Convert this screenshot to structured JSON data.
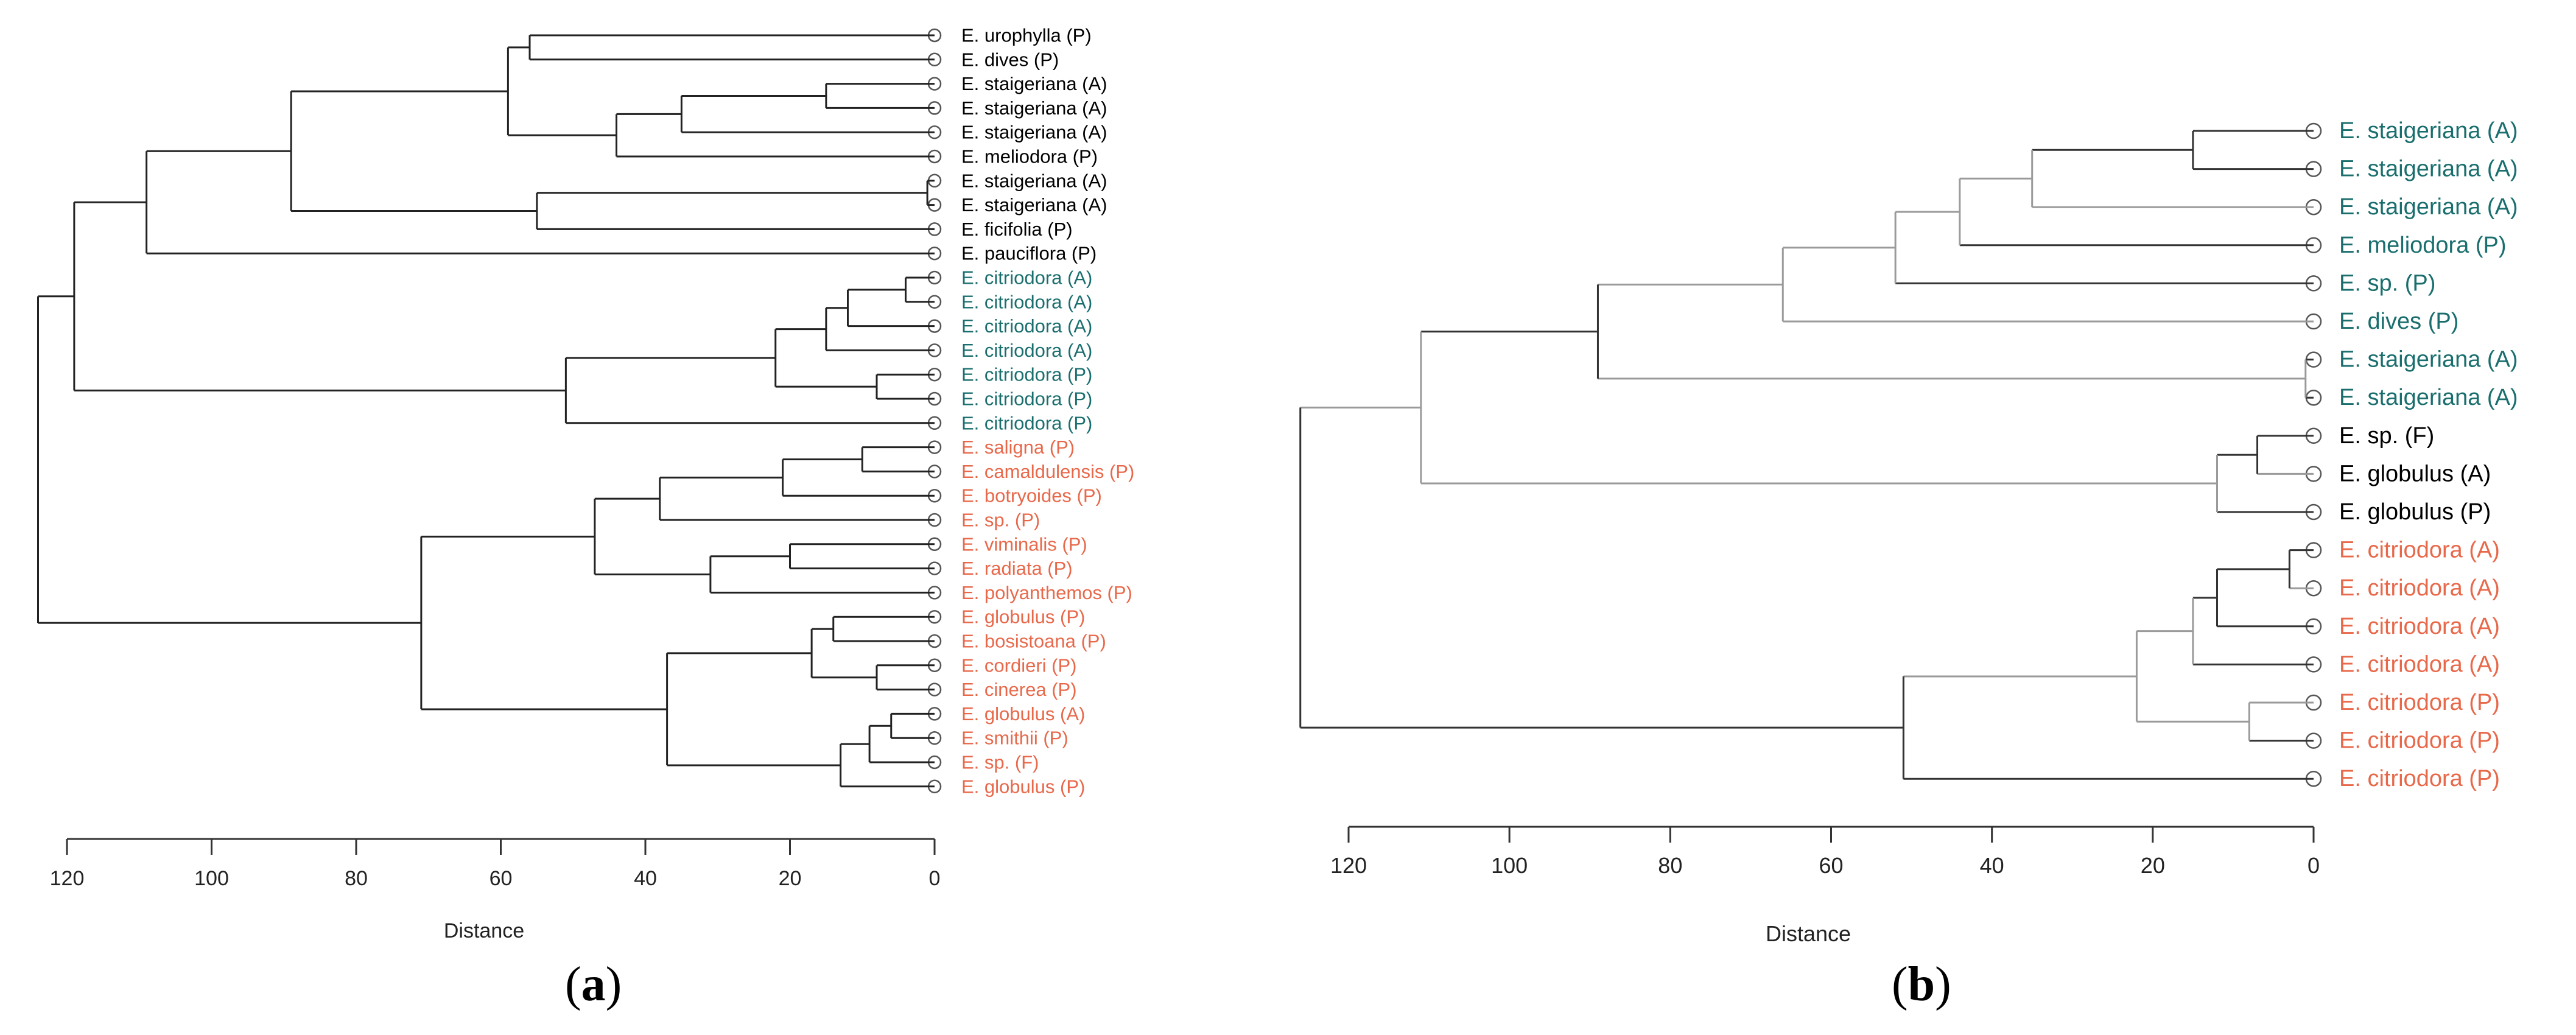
{
  "panels": [
    {
      "id": "a",
      "caption_open": "(",
      "caption_letter": "a",
      "caption_close": ")",
      "axis": {
        "label": "Distance",
        "ticks": [
          120,
          100,
          80,
          60,
          40,
          20,
          0
        ],
        "max": 124
      },
      "colors": {
        "black": "#000000",
        "teal": "#1a6e6e",
        "orange": "#e8684a"
      },
      "edge_style": "uniform",
      "tree": {
        "h": 124,
        "c": [
          {
            "h": 119,
            "c": [
              {
                "h": 109,
                "c": [
                  {
                    "h": 89,
                    "c": [
                      {
                        "h": 59,
                        "c": [
                          {
                            "h": 56,
                            "c": [
                              {
                                "label": "E. urophylla (P)",
                                "color": "black"
                              },
                              {
                                "label": "E. dives (P)",
                                "color": "black"
                              }
                            ]
                          },
                          {
                            "h": 44,
                            "c": [
                              {
                                "h": 35,
                                "c": [
                                  {
                                    "h": 15,
                                    "c": [
                                      {
                                        "label": "E. staigeriana (A)",
                                        "color": "black"
                                      },
                                      {
                                        "label": "E. staigeriana (A)",
                                        "color": "black"
                                      }
                                    ]
                                  },
                                  {
                                    "label": "E. staigeriana (A)",
                                    "color": "black"
                                  }
                                ]
                              },
                              {
                                "label": "E. meliodora (P)",
                                "color": "black"
                              }
                            ]
                          }
                        ]
                      },
                      {
                        "h": 55,
                        "c": [
                          {
                            "h": 1,
                            "c": [
                              {
                                "label": "E. staigeriana (A)",
                                "color": "black"
                              },
                              {
                                "label": "E. staigeriana (A)",
                                "color": "black"
                              }
                            ]
                          },
                          {
                            "label": "E. ficifolia (P)",
                            "color": "black"
                          }
                        ]
                      }
                    ]
                  },
                  {
                    "label": "E. pauciflora (P)",
                    "color": "black"
                  }
                ]
              },
              {
                "h": 51,
                "c": [
                  {
                    "h": 22,
                    "c": [
                      {
                        "h": 15,
                        "c": [
                          {
                            "h": 12,
                            "c": [
                              {
                                "h": 4,
                                "c": [
                                  {
                                    "label": "E. citriodora (A)",
                                    "color": "teal"
                                  },
                                  {
                                    "label": "E. citriodora (A)",
                                    "color": "teal"
                                  }
                                ]
                              },
                              {
                                "label": "E. citriodora (A)",
                                "color": "teal"
                              }
                            ]
                          },
                          {
                            "label": "E. citriodora (A)",
                            "color": "teal"
                          }
                        ]
                      },
                      {
                        "h": 8,
                        "c": [
                          {
                            "label": "E. citriodora (P)",
                            "color": "teal"
                          },
                          {
                            "label": "E. citriodora (P)",
                            "color": "teal"
                          }
                        ]
                      }
                    ]
                  },
                  {
                    "label": "E. citriodora (P)",
                    "color": "teal"
                  }
                ]
              }
            ]
          },
          {
            "h": 71,
            "c": [
              {
                "h": 47,
                "c": [
                  {
                    "h": 38,
                    "c": [
                      {
                        "h": 21,
                        "c": [
                          {
                            "h": 10,
                            "c": [
                              {
                                "label": "E. saligna (P)",
                                "color": "orange"
                              },
                              {
                                "label": "E. camaldulensis (P)",
                                "color": "orange"
                              }
                            ]
                          },
                          {
                            "label": "E. botryoides (P)",
                            "color": "orange"
                          }
                        ]
                      },
                      {
                        "label": "E. sp. (P)",
                        "color": "orange"
                      }
                    ]
                  },
                  {
                    "h": 31,
                    "c": [
                      {
                        "h": 20,
                        "c": [
                          {
                            "label": "E. viminalis (P)",
                            "color": "orange"
                          },
                          {
                            "label": "E. radiata (P)",
                            "color": "orange"
                          }
                        ]
                      },
                      {
                        "label": "E. polyanthemos (P)",
                        "color": "orange"
                      }
                    ]
                  }
                ]
              },
              {
                "h": 37,
                "c": [
                  {
                    "h": 17,
                    "c": [
                      {
                        "h": 14,
                        "c": [
                          {
                            "label": "E. globulus (P)",
                            "color": "orange"
                          },
                          {
                            "label": "E. bosistoana (P)",
                            "color": "orange"
                          }
                        ]
                      },
                      {
                        "h": 8,
                        "c": [
                          {
                            "label": "E. cordieri (P)",
                            "color": "orange"
                          },
                          {
                            "label": "E. cinerea (P)",
                            "color": "orange"
                          }
                        ]
                      }
                    ]
                  },
                  {
                    "h": 13,
                    "c": [
                      {
                        "h": 9,
                        "c": [
                          {
                            "h": 6,
                            "c": [
                              {
                                "label": "E. globulus (A)",
                                "color": "orange"
                              },
                              {
                                "label": "E. smithii (P)",
                                "color": "orange"
                              }
                            ]
                          },
                          {
                            "label": "E. sp. (F)",
                            "color": "orange"
                          }
                        ]
                      },
                      {
                        "label": "E. globulus (P)",
                        "color": "orange"
                      }
                    ]
                  }
                ]
              }
            ]
          }
        ]
      }
    },
    {
      "id": "b",
      "caption_open": "(",
      "caption_letter": "b",
      "caption_close": ")",
      "axis": {
        "label": "Distance",
        "ticks": [
          120,
          100,
          80,
          60,
          40,
          20,
          0
        ],
        "max": 126
      },
      "colors": {
        "black": "#000000",
        "teal": "#1a6e6e",
        "orange": "#e8684a",
        "edge_dark": "#333333",
        "edge_light": "#9a9a9a"
      },
      "edge_style": "mixed",
      "tree": {
        "h": 126,
        "c": [
          {
            "h": 111,
            "e": "light",
            "c": [
              {
                "h": 89,
                "e": "dark",
                "c": [
                  {
                    "h": 66,
                    "e": "light",
                    "c": [
                      {
                        "h": 52,
                        "e": "light",
                        "c": [
                          {
                            "h": 44,
                            "e": "light",
                            "c": [
                              {
                                "h": 35,
                                "e": "light",
                                "c": [
                                  {
                                    "h": 15,
                                    "e": "dark",
                                    "c": [
                                      {
                                        "label": "E. staigeriana (A)",
                                        "color": "teal",
                                        "e": "dark"
                                      },
                                      {
                                        "label": "E. staigeriana (A)",
                                        "color": "teal",
                                        "e": "dark"
                                      }
                                    ]
                                  },
                                  {
                                    "label": "E. staigeriana (A)",
                                    "color": "teal",
                                    "e": "light"
                                  }
                                ]
                              },
                              {
                                "label": "E. meliodora (P)",
                                "color": "teal",
                                "e": "dark"
                              }
                            ]
                          },
                          {
                            "label": "E. sp. (P)",
                            "color": "teal",
                            "e": "dark"
                          }
                        ]
                      },
                      {
                        "label": "E. dives (P)",
                        "color": "teal",
                        "e": "light"
                      }
                    ]
                  },
                  {
                    "h": 1,
                    "e": "light",
                    "c": [
                      {
                        "label": "E. staigeriana (A)",
                        "color": "teal",
                        "e": "dark"
                      },
                      {
                        "label": "E. staigeriana (A)",
                        "color": "teal",
                        "e": "dark"
                      }
                    ]
                  }
                ]
              },
              {
                "h": 12,
                "e": "light",
                "c": [
                  {
                    "h": 7,
                    "e": "dark",
                    "c": [
                      {
                        "label": "E. sp. (F)",
                        "color": "black",
                        "e": "dark"
                      },
                      {
                        "label": "E. globulus (A)",
                        "color": "black",
                        "e": "light"
                      }
                    ]
                  },
                  {
                    "label": "E. globulus (P)",
                    "color": "black",
                    "e": "dark"
                  }
                ]
              }
            ]
          },
          {
            "h": 51,
            "e": "dark",
            "c": [
              {
                "h": 22,
                "e": "light",
                "c": [
                  {
                    "h": 15,
                    "e": "light",
                    "c": [
                      {
                        "h": 12,
                        "e": "dark",
                        "c": [
                          {
                            "h": 3,
                            "e": "dark",
                            "c": [
                              {
                                "label": "E. citriodora (A)",
                                "color": "orange",
                                "e": "dark"
                              },
                              {
                                "label": "E. citriodora (A)",
                                "color": "orange",
                                "e": "light"
                              }
                            ]
                          },
                          {
                            "label": "E. citriodora (A)",
                            "color": "orange",
                            "e": "dark"
                          }
                        ]
                      },
                      {
                        "label": "E. citriodora (A)",
                        "color": "orange",
                        "e": "dark"
                      }
                    ]
                  },
                  {
                    "h": 8,
                    "e": "light",
                    "c": [
                      {
                        "label": "E. citriodora (P)",
                        "color": "orange",
                        "e": "light"
                      },
                      {
                        "label": "E. citriodora (P)",
                        "color": "orange",
                        "e": "dark"
                      }
                    ]
                  }
                ]
              },
              {
                "label": "E. citriodora (P)",
                "color": "orange",
                "e": "dark"
              }
            ]
          }
        ]
      }
    }
  ]
}
